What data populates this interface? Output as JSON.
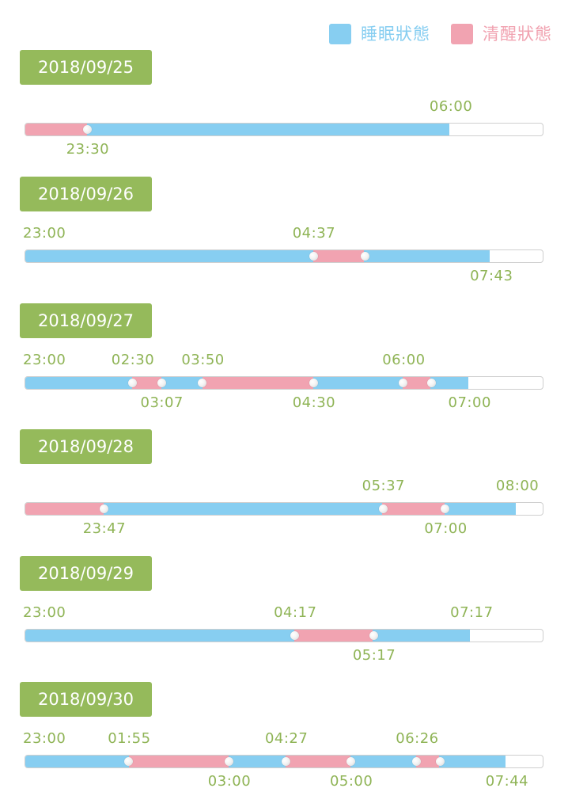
{
  "colors": {
    "sleep": "#87cef1",
    "awake": "#f1a3b1",
    "date_box": "#95ba5b",
    "time_text": "#8fb456"
  },
  "legend": [
    {
      "label": "睡眠狀態",
      "state": "sleep"
    },
    {
      "label": "清醒狀態",
      "state": "awake"
    }
  ],
  "days": [
    {
      "date": "2018/09/25",
      "segments": [
        {
          "state": "awake",
          "from": 0.0,
          "to": 0.12
        },
        {
          "state": "sleep",
          "from": 0.12,
          "to": 0.82
        }
      ],
      "labels": [
        {
          "text": "06:00",
          "at": 0.82,
          "pos": "above"
        },
        {
          "text": "23:30",
          "at": 0.12,
          "pos": "below"
        }
      ]
    },
    {
      "date": "2018/09/26",
      "segments": [
        {
          "state": "sleep",
          "from": 0.0,
          "to": 0.556
        },
        {
          "state": "awake",
          "from": 0.556,
          "to": 0.655
        },
        {
          "state": "sleep",
          "from": 0.655,
          "to": 0.898
        }
      ],
      "labels": [
        {
          "text": "23:00",
          "at": 0.0,
          "pos": "above"
        },
        {
          "text": "04:37",
          "at": 0.556,
          "pos": "above"
        },
        {
          "text": "07:43",
          "at": 0.898,
          "pos": "below"
        }
      ]
    },
    {
      "date": "2018/09/27",
      "segments": [
        {
          "state": "sleep",
          "from": 0.0,
          "to": 0.207
        },
        {
          "state": "awake",
          "from": 0.207,
          "to": 0.263
        },
        {
          "state": "sleep",
          "from": 0.263,
          "to": 0.342
        },
        {
          "state": "awake",
          "from": 0.342,
          "to": 0.556
        },
        {
          "state": "sleep",
          "from": 0.556,
          "to": 0.729
        },
        {
          "state": "awake",
          "from": 0.729,
          "to": 0.783
        },
        {
          "state": "sleep",
          "from": 0.783,
          "to": 0.856
        }
      ],
      "labels": [
        {
          "text": "23:00",
          "at": 0.0,
          "pos": "above"
        },
        {
          "text": "02:30",
          "at": 0.207,
          "pos": "above"
        },
        {
          "text": "03:50",
          "at": 0.342,
          "pos": "above"
        },
        {
          "text": "06:00",
          "at": 0.729,
          "pos": "above"
        },
        {
          "text": "03:07",
          "at": 0.263,
          "pos": "below"
        },
        {
          "text": "04:30",
          "at": 0.556,
          "pos": "below"
        },
        {
          "text": "07:00",
          "at": 0.856,
          "pos": "below"
        }
      ]
    },
    {
      "date": "2018/09/28",
      "segments": [
        {
          "state": "awake",
          "from": 0.0,
          "to": 0.152
        },
        {
          "state": "sleep",
          "from": 0.152,
          "to": 0.69
        },
        {
          "state": "awake",
          "from": 0.69,
          "to": 0.81
        },
        {
          "state": "sleep",
          "from": 0.81,
          "to": 0.948
        }
      ],
      "labels": [
        {
          "text": "05:37",
          "at": 0.69,
          "pos": "above"
        },
        {
          "text": "08:00",
          "at": 0.948,
          "pos": "above"
        },
        {
          "text": "23:47",
          "at": 0.152,
          "pos": "below"
        },
        {
          "text": "07:00",
          "at": 0.81,
          "pos": "below"
        }
      ]
    },
    {
      "date": "2018/09/29",
      "segments": [
        {
          "state": "sleep",
          "from": 0.0,
          "to": 0.52
        },
        {
          "state": "awake",
          "from": 0.52,
          "to": 0.672
        },
        {
          "state": "sleep",
          "from": 0.672,
          "to": 0.86
        }
      ],
      "labels": [
        {
          "text": "23:00",
          "at": 0.0,
          "pos": "above"
        },
        {
          "text": "04:17",
          "at": 0.52,
          "pos": "above"
        },
        {
          "text": "07:17",
          "at": 0.86,
          "pos": "above"
        },
        {
          "text": "05:17",
          "at": 0.672,
          "pos": "below"
        }
      ]
    },
    {
      "date": "2018/09/30",
      "segments": [
        {
          "state": "sleep",
          "from": 0.0,
          "to": 0.2
        },
        {
          "state": "awake",
          "from": 0.2,
          "to": 0.393
        },
        {
          "state": "sleep",
          "from": 0.393,
          "to": 0.503
        },
        {
          "state": "awake",
          "from": 0.503,
          "to": 0.628
        },
        {
          "state": "sleep",
          "from": 0.628,
          "to": 0.755
        },
        {
          "state": "awake",
          "from": 0.755,
          "to": 0.8
        },
        {
          "state": "sleep",
          "from": 0.8,
          "to": 0.928
        }
      ],
      "labels": [
        {
          "text": "23:00",
          "at": 0.0,
          "pos": "above"
        },
        {
          "text": "01:55",
          "at": 0.2,
          "pos": "above"
        },
        {
          "text": "04:27",
          "at": 0.503,
          "pos": "above"
        },
        {
          "text": "06:26",
          "at": 0.755,
          "pos": "above"
        },
        {
          "text": "03:00",
          "at": 0.393,
          "pos": "below"
        },
        {
          "text": "05:00",
          "at": 0.628,
          "pos": "below"
        },
        {
          "text": "07:44",
          "at": 0.928,
          "pos": "below"
        }
      ]
    }
  ]
}
